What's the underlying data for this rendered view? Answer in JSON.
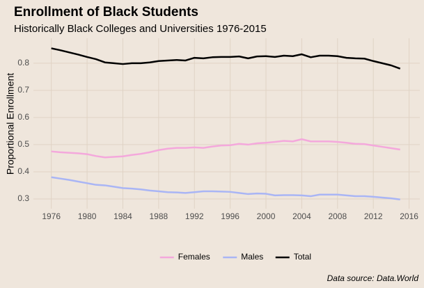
{
  "chart_data": {
    "type": "line",
    "title": "Enrollment of Black Students",
    "subtitle": "Historically Black Colleges and Universities 1976-2015",
    "y_label": "Proportional Enrollment",
    "caption": "Data source: Data.World",
    "x": [
      1976,
      1977,
      1978,
      1979,
      1980,
      1981,
      1982,
      1983,
      1984,
      1985,
      1986,
      1987,
      1988,
      1989,
      1990,
      1991,
      1992,
      1993,
      1994,
      1995,
      1996,
      1997,
      1998,
      1999,
      2000,
      2001,
      2002,
      2003,
      2004,
      2005,
      2006,
      2007,
      2008,
      2009,
      2010,
      2011,
      2012,
      2013,
      2014,
      2015
    ],
    "series": [
      {
        "name": "Females",
        "color": "#f4a8dc",
        "values": [
          0.475,
          0.472,
          0.47,
          0.468,
          0.465,
          0.458,
          0.453,
          0.455,
          0.457,
          0.462,
          0.466,
          0.472,
          0.48,
          0.485,
          0.488,
          0.488,
          0.49,
          0.488,
          0.493,
          0.497,
          0.498,
          0.503,
          0.5,
          0.505,
          0.507,
          0.51,
          0.514,
          0.512,
          0.52,
          0.512,
          0.512,
          0.512,
          0.51,
          0.507,
          0.503,
          0.502,
          0.497,
          0.492,
          0.487,
          0.482
        ]
      },
      {
        "name": "Males",
        "color": "#a9b5f5",
        "values": [
          0.38,
          0.375,
          0.37,
          0.364,
          0.358,
          0.352,
          0.35,
          0.345,
          0.34,
          0.338,
          0.335,
          0.331,
          0.328,
          0.325,
          0.324,
          0.322,
          0.325,
          0.328,
          0.328,
          0.327,
          0.326,
          0.322,
          0.318,
          0.32,
          0.319,
          0.313,
          0.314,
          0.314,
          0.313,
          0.31,
          0.316,
          0.316,
          0.316,
          0.313,
          0.31,
          0.31,
          0.308,
          0.305,
          0.302,
          0.298
        ]
      },
      {
        "name": "Total",
        "color": "#000000",
        "values": [
          0.855,
          0.848,
          0.84,
          0.832,
          0.823,
          0.815,
          0.803,
          0.8,
          0.797,
          0.8,
          0.8,
          0.803,
          0.808,
          0.81,
          0.812,
          0.81,
          0.82,
          0.818,
          0.822,
          0.823,
          0.823,
          0.825,
          0.818,
          0.825,
          0.826,
          0.823,
          0.828,
          0.826,
          0.833,
          0.822,
          0.828,
          0.828,
          0.826,
          0.82,
          0.818,
          0.817,
          0.808,
          0.8,
          0.792,
          0.78
        ]
      }
    ],
    "xlim": [
      1974,
      2017.2
    ],
    "xticks": [
      1976,
      1980,
      1984,
      1988,
      1992,
      1996,
      2000,
      2004,
      2008,
      2012,
      2016
    ],
    "ylim": [
      0.264,
      0.892
    ],
    "yticks": [
      0.3,
      0.4,
      0.5,
      0.6,
      0.7,
      0.8
    ],
    "grid": true,
    "legend": "bottom"
  }
}
